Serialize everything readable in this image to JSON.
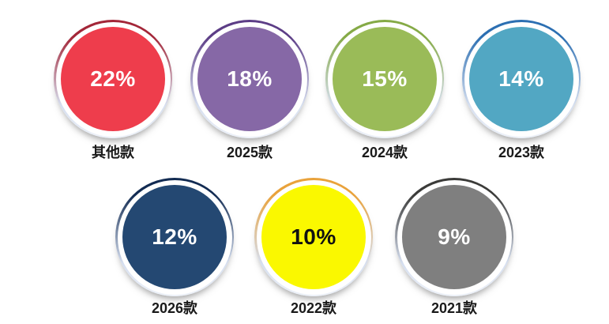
{
  "page": {
    "background": "#ffffff",
    "label_color": "#1a1a1a",
    "ring_fade_color": "#d5deef"
  },
  "chart_data": {
    "type": "bubble",
    "title": "",
    "xlabel": "",
    "ylabel": "",
    "unit": "%",
    "legend_position": "none",
    "grid": false,
    "categories": [
      "其他款",
      "2025款",
      "2024款",
      "2023款",
      "2026款",
      "2022款",
      "2021款"
    ],
    "values": [
      22,
      18,
      15,
      14,
      12,
      10,
      9
    ],
    "items": [
      {
        "label": "其他款",
        "value": 22,
        "value_text": "22%",
        "fill": "#ee3d4c",
        "arc": "#a32638",
        "text_color": "#ffffff",
        "row": 1
      },
      {
        "label": "2025款",
        "value": 18,
        "value_text": "18%",
        "fill": "#8668a6",
        "arc": "#5c3d86",
        "text_color": "#ffffff",
        "row": 1
      },
      {
        "label": "2024款",
        "value": 15,
        "value_text": "15%",
        "fill": "#9abb58",
        "arc": "#85aa46",
        "text_color": "#ffffff",
        "row": 1
      },
      {
        "label": "2023款",
        "value": 14,
        "value_text": "14%",
        "fill": "#52a7c3",
        "arc": "#2c6fb2",
        "text_color": "#ffffff",
        "row": 1
      },
      {
        "label": "2026款",
        "value": 12,
        "value_text": "12%",
        "fill": "#244872",
        "arc": "#122b52",
        "text_color": "#ffffff",
        "row": 2
      },
      {
        "label": "2022款",
        "value": 10,
        "value_text": "10%",
        "fill": "#faf800",
        "arc": "#e9a23b",
        "text_color": "#111111",
        "row": 2
      },
      {
        "label": "2021款",
        "value": 9,
        "value_text": "9%",
        "fill": "#7f7f7f",
        "arc": "#3b3b39",
        "text_color": "#ffffff",
        "row": 2
      }
    ]
  }
}
